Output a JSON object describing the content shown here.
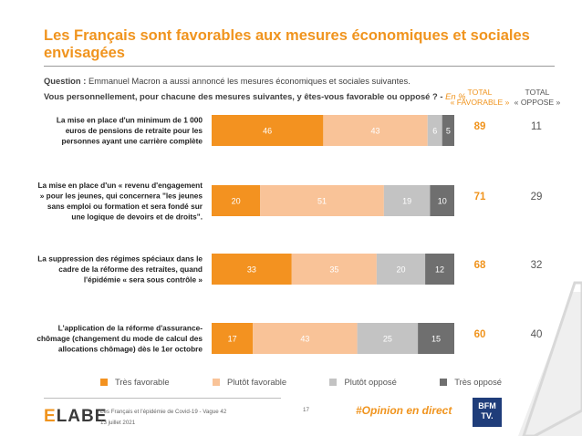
{
  "title": "Les Français sont favorables aux mesures économiques et sociales envisagées",
  "question": {
    "label": "Question :",
    "line1": " Emmanuel Macron a aussi annoncé les mesures économiques et sociales suivantes.",
    "line2": "Vous personnellement, pour chacune des mesures suivantes, y êtes-vous favorable ou opposé ? - ",
    "unit": "En %"
  },
  "column_headers": {
    "favorable_line1": "TOTAL",
    "favorable_line2": "« FAVORABLE »",
    "oppose_line1": "TOTAL",
    "oppose_line2": "« OPPOSE »"
  },
  "colors": {
    "tres_favorable": "#f39220",
    "plutot_favorable": "#f9c398",
    "plutot_oppose": "#c3c3c3",
    "tres_oppose": "#6f6f6f",
    "accent": "#f0941e"
  },
  "chart_data": {
    "type": "bar",
    "orientation": "horizontal-stacked",
    "unit": "En %",
    "categories": [
      [
        "La mise en place d'un minimum de 1 000",
        "euros de pensions de retraite pour les",
        "personnes ayant une carrière complète"
      ],
      [
        "La mise en place d'un « revenu d'engagement",
        "» pour les jeunes, qui concernera \"les jeunes",
        "sans emploi ou formation et sera fondé sur",
        "une logique de devoirs et de droits\"."
      ],
      [
        "La suppression des régimes spéciaux dans le",
        "cadre de la réforme des retraites, quand",
        "l'épidémie « sera sous contrôle »"
      ],
      [
        "L'application de la réforme d'assurance-",
        "chômage (changement du mode de calcul des",
        "allocations chômage) dès le 1er octobre"
      ]
    ],
    "series": [
      {
        "name": "Très favorable",
        "values": [
          46,
          20,
          33,
          17
        ]
      },
      {
        "name": "Plutôt favorable",
        "values": [
          43,
          51,
          35,
          43
        ]
      },
      {
        "name": "Plutôt opposé",
        "values": [
          6,
          19,
          20,
          25
        ]
      },
      {
        "name": "Très opposé",
        "values": [
          5,
          10,
          12,
          15
        ]
      }
    ],
    "total_favorable": [
      89,
      71,
      68,
      60
    ],
    "total_oppose": [
      11,
      29,
      32,
      40
    ],
    "xlim": [
      0,
      100
    ],
    "legend_position": "bottom"
  },
  "footer": {
    "logo_part1": "E",
    "logo_part2": "LABE",
    "source_line1": "Les Français et l'épidémie de Covid-19 - Vague 42",
    "source_line2": "13 juillet 2021",
    "page_number": "17",
    "hashtag": "#Opinion en direct",
    "partner_line1": "BFM",
    "partner_line2": "TV."
  }
}
